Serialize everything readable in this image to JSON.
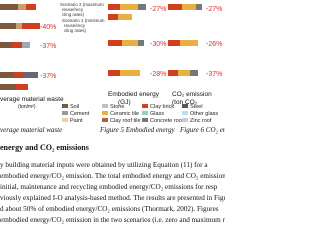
{
  "figures": [
    {
      "annotations": [
        "Scenario 2 (maximum",
        "reuse/recy",
        "cling rates)",
        "Scenario 1 (minimum",
        "reuse/recy",
        "cling rates)"
      ],
      "percent_labels": [
        "-40%",
        "-37%",
        "-37%"
      ],
      "axis_label": "verage material waste",
      "axis_unit": "(ton/m²)",
      "caption": "verage material waste"
    },
    {
      "percent_labels": [
        "-27%",
        "-30%",
        "-28%"
      ],
      "axis_label": "Embodied energy",
      "axis_unit": "(GJ)",
      "caption": "Figure 5 Embodied energy"
    },
    {
      "percent_labels": [
        "-27%",
        "-26%",
        "-37%"
      ],
      "axis_label": "CO₂ emission",
      "axis_unit": "(ton CO₂",
      "caption": "Figure 6 CO₂ emi"
    }
  ],
  "legend": [
    [
      "Soil",
      "Stone",
      "Clay brick",
      "Steel"
    ],
    [
      "Cement",
      "Ceramic tile",
      "Glass",
      "Other glass"
    ],
    [
      "Paint",
      "Clay roof tile",
      "Concrete roof",
      "Zinc roof"
    ]
  ],
  "section": {
    "heading": "energy and CO₂ emissions",
    "lines": [
      "y building material inputs were obtained by utilizing Equation (11) for a",
      "embodied energy/CO₂ emission. The total embodied energy and CO₂ emissions w",
      "initial, maintenance and recycling embodied energy/CO₂ emissions for resp",
      "viously explained I-O analysis-based method. The results are presented in Figures",
      "d about 50% of embodied energy/CO₂ emissions (Thormark, 2002). Figures",
      "embodied energy/CO₂ emission in the two scenarios (i.e. zero and maximum reuse/re"
    ]
  }
}
